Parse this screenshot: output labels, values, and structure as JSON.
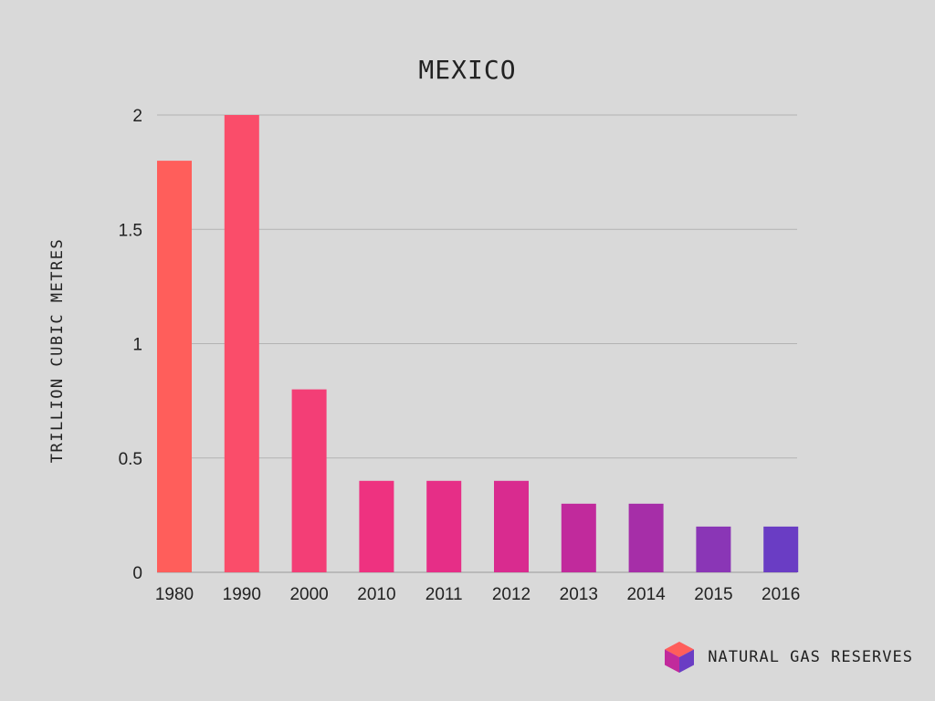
{
  "chart_data": {
    "type": "bar",
    "title": "MEXICO",
    "xlabel": "",
    "ylabel": "TRILLION CUBIC METRES",
    "categories": [
      "1980",
      "1990",
      "2000",
      "2010",
      "2011",
      "2012",
      "2013",
      "2014",
      "2015",
      "2016"
    ],
    "values": [
      1.8,
      2.0,
      0.8,
      0.4,
      0.4,
      0.4,
      0.3,
      0.3,
      0.2,
      0.2
    ],
    "ylim": [
      0,
      2
    ],
    "yticks": [
      0,
      0.5,
      1,
      1.5,
      2
    ],
    "ytick_labels": [
      "0",
      "0.5",
      "1",
      "1.5",
      "2"
    ],
    "grid": true,
    "legend": "none",
    "bar_colors": [
      "#ff5e5b",
      "#fa4d6a",
      "#f33e76",
      "#ee3280",
      "#e62e87",
      "#d92b8f",
      "#c12a9c",
      "#a62ea8",
      "#8a36b6",
      "#6a3dc4"
    ]
  },
  "branding": {
    "name": "NATURAL GAS RESERVES",
    "logo_icon": "cube-icon",
    "logo_colors": {
      "top": "#ff5e5b",
      "left": "#c12a9c",
      "right": "#6a3dc4"
    }
  }
}
